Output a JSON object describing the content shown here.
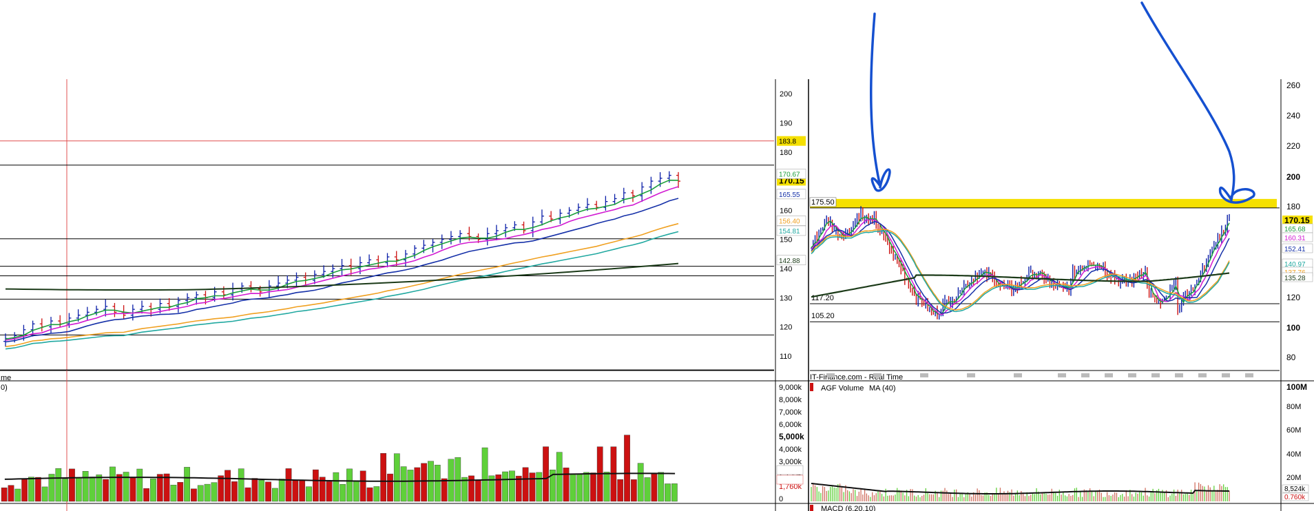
{
  "colors": {
    "up_candle": "#0b1fa8",
    "down_candle": "#cc1111",
    "ma_green": "#1a9e3a",
    "ma_magenta": "#d21ad2",
    "ma_blue": "#1530a8",
    "ma_orange": "#f0a020",
    "ma_teal": "#20a8a0",
    "ma_darkgreen": "#1b3a18",
    "volume_up": "#5fd03a",
    "volume_down": "#cc1111",
    "resistance_highlight": "#f5e000",
    "annotation_ink": "#1550d0"
  },
  "left_panel": {
    "watermark": "",
    "price_axis": {
      "ticks": [
        "200",
        "190",
        "180",
        "160",
        "150",
        "140",
        "130",
        "120",
        "110"
      ],
      "markers": [
        {
          "label": "183.8",
          "value": 183.8,
          "bg": "#f5e000",
          "fg": "#000000"
        },
        {
          "label": "170.15",
          "value": 170.15,
          "bg": "#f5e000",
          "fg": "#000000",
          "bold": true
        },
        {
          "label": "170.67",
          "value": 172.5,
          "bg": "#ffffff",
          "fg": "#1a9e3a"
        },
        {
          "label": "165.55",
          "value": 165.55,
          "bg": "#ffffff",
          "fg": "#1530a8"
        },
        {
          "label": "156.40",
          "value": 156.4,
          "bg": "#ffffff",
          "fg": "#f0a020"
        },
        {
          "label": "154.81",
          "value": 153.0,
          "bg": "#ffffff",
          "fg": "#20a8a0"
        },
        {
          "label": "142.88",
          "value": 142.88,
          "bg": "#ffffff",
          "fg": "#1b3a18"
        }
      ]
    },
    "volume_axis": {
      "ticks": [
        "9,000k",
        "8,000k",
        "7,000k",
        "6,000k",
        "5,000k",
        "4,000k",
        "3,000k",
        "2,153k",
        "1,760k",
        "0"
      ],
      "markers": [
        {
          "label": "2,153k"
        },
        {
          "label": "1,760k"
        },
        {
          "label": "0"
        }
      ]
    },
    "left_cut_labels": [
      "me",
      "0)"
    ]
  },
  "right_panel": {
    "source_label": "IT-Finance.com - Real Time",
    "price_axis": {
      "ticks": [
        "260",
        "240",
        "220",
        "200",
        "180",
        "120",
        "100",
        "80"
      ],
      "markers": [
        {
          "label": "170.15",
          "bg": "#f5e000",
          "fg": "#000000",
          "bold": true
        },
        {
          "label": "165.68",
          "bg": "#ffffff",
          "fg": "#1a9e3a"
        },
        {
          "label": "160.31",
          "bg": "#ffffff",
          "fg": "#d21ad2"
        },
        {
          "label": "152.41",
          "bg": "#ffffff",
          "fg": "#1530a8"
        },
        {
          "label": "140.97",
          "bg": "#ffffff",
          "fg": "#20a8a0"
        },
        {
          "label": "137.76",
          "bg": "#ffffff",
          "fg": "#f0a020"
        },
        {
          "label": "135.28",
          "bg": "#ffffff",
          "fg": "#1b3a18"
        }
      ]
    },
    "level_labels": [
      "175.50",
      "117.20",
      "105.20"
    ],
    "volume_title": "AGF Volume",
    "volume_ma_label": "MA (40)",
    "volume_axis": {
      "ticks": [
        "100M",
        "80M",
        "60M",
        "40M",
        "20M"
      ],
      "markers": [
        {
          "label": "8,524k",
          "fg": "#000000"
        },
        {
          "label": "0.760k",
          "fg": "#cc1111"
        }
      ]
    },
    "macd_label": "MACD (6,20,10)"
  },
  "chart_data": [
    {
      "type": "candlestick",
      "panel": "left-price",
      "ylim": [
        105,
        205
      ],
      "ticks": [
        200,
        190,
        180,
        160,
        150,
        140,
        130,
        120,
        110
      ],
      "horizontal_levels": [
        183.8,
        175.5,
        150.2,
        140.8,
        137.5,
        129.5,
        117.2,
        105.2
      ],
      "close_series": [
        116,
        117,
        119,
        121,
        120,
        122,
        121,
        123,
        124,
        125,
        126,
        127,
        125,
        124,
        126,
        127,
        126,
        128,
        127,
        129,
        130,
        131,
        130,
        132,
        131,
        133,
        134,
        133,
        132,
        134,
        135,
        136,
        137,
        136,
        138,
        139,
        140,
        141,
        140,
        142,
        143,
        142,
        144,
        143,
        145,
        147,
        148,
        149,
        150,
        151,
        152,
        151,
        150,
        152,
        153,
        154,
        155,
        153,
        156,
        158,
        157,
        159,
        160,
        161,
        162,
        161,
        163,
        164,
        166,
        165,
        168,
        170,
        171,
        172,
        170
      ],
      "moving_averages": [
        {
          "name": "MA 20",
          "color": "#1a9e3a",
          "values": [
            118,
            118,
            119,
            120,
            121,
            121,
            122,
            123,
            124,
            124,
            125,
            126,
            126,
            127,
            127,
            128,
            128,
            129,
            129,
            130,
            130,
            131,
            132,
            132,
            133,
            134,
            134,
            135,
            136,
            137,
            138,
            139,
            140,
            141,
            142,
            143,
            144,
            145,
            146,
            147,
            148,
            149,
            150,
            151,
            152,
            153,
            154,
            155,
            156,
            157,
            158,
            159,
            160,
            161,
            162,
            163,
            164,
            165,
            166,
            167,
            168,
            169,
            170,
            170,
            171,
            171,
            171,
            171,
            171,
            171,
            171,
            171,
            171,
            171,
            171
          ]
        }
      ],
      "current_price": 170.15
    },
    {
      "type": "bar",
      "panel": "left-volume",
      "ylabel": "",
      "ylim": [
        0,
        9000
      ],
      "ticks": [
        9000,
        8000,
        7000,
        6000,
        5000,
        4000,
        3000
      ],
      "ma_label": "MA (40)",
      "last_values": [
        2153,
        1760
      ]
    },
    {
      "type": "candlestick",
      "panel": "right-price",
      "title": "IT-Finance.com - Real Time",
      "ylim": [
        70,
        265
      ],
      "ticks": [
        260,
        240,
        220,
        200,
        180,
        120,
        100,
        80
      ],
      "horizontal_levels": [
        175.5,
        117.2,
        105.2
      ],
      "current_price": 170.15,
      "ma_values": [
        165.68,
        160.31,
        152.41,
        140.97,
        137.76,
        135.28
      ]
    },
    {
      "type": "bar",
      "panel": "right-volume",
      "title": "AGF Volume",
      "ma_label": "MA (40)",
      "ylim": [
        0,
        100000
      ],
      "ticks": [
        "100M",
        "80M",
        "60M",
        "40M",
        "20M"
      ],
      "last_values": [
        "8,524k",
        "0.760k"
      ]
    }
  ]
}
